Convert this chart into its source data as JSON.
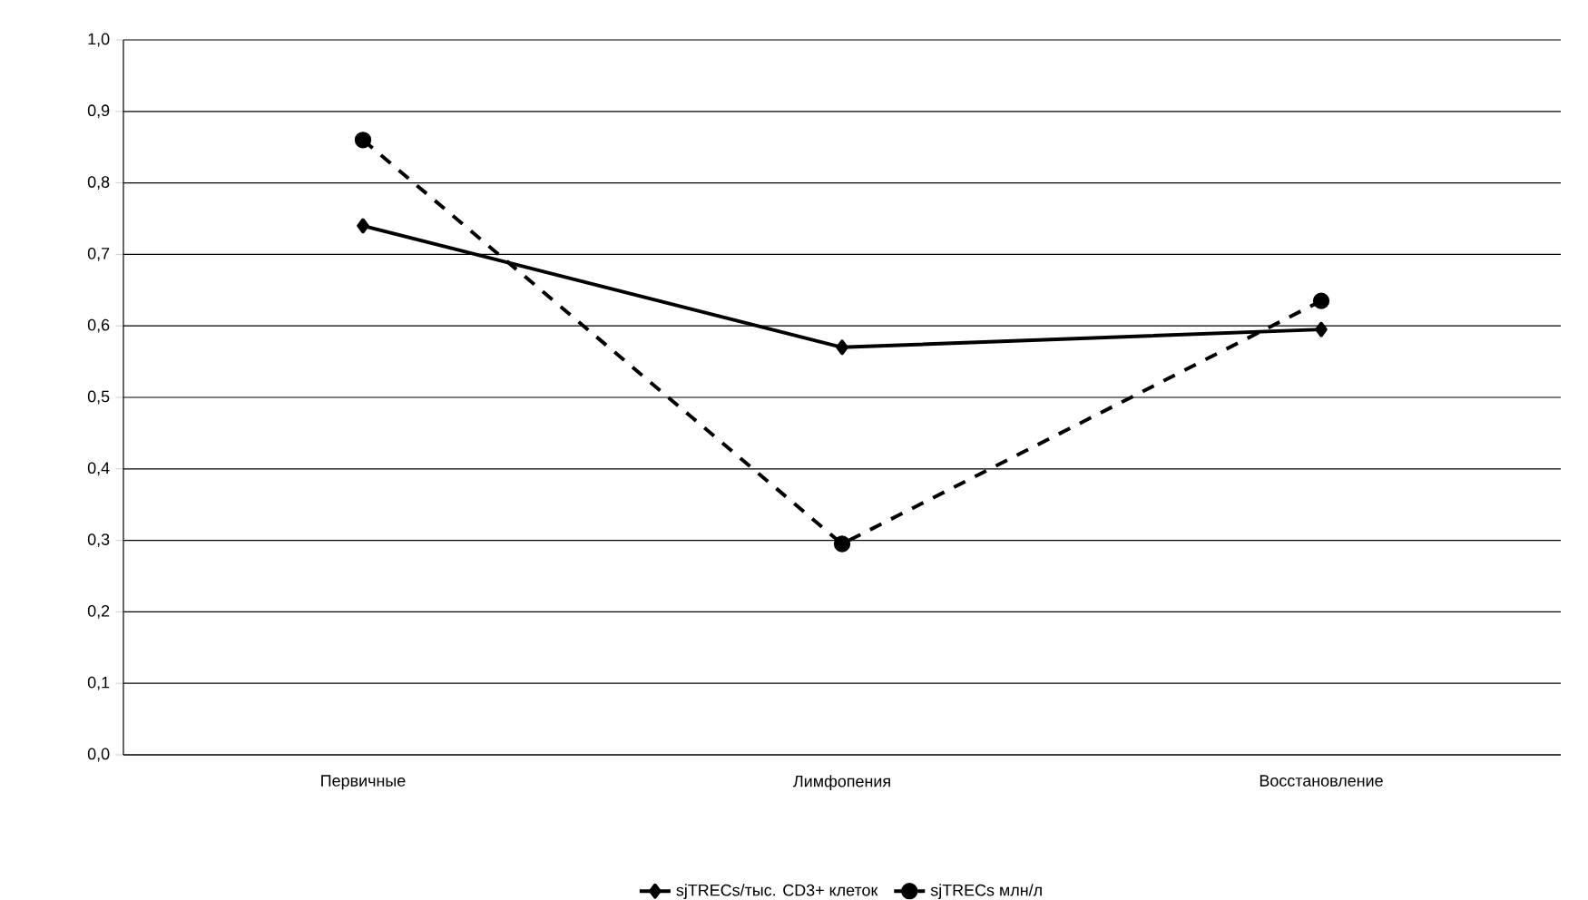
{
  "chart_data": {
    "type": "line",
    "categories": [
      "Первичные",
      "Лимфопения",
      "Восстановление"
    ],
    "series": [
      {
        "name": "sjTRECs/тыс. CD3+ клеток",
        "color": "#000000",
        "values": [
          0.74,
          0.57,
          0.595
        ],
        "marker": "diamond",
        "line_style": "solid"
      },
      {
        "name": "sjTRECs млн/л",
        "color": "#000000",
        "values": [
          0.86,
          0.295,
          0.635
        ],
        "marker": "circle",
        "line_style": "dashed"
      }
    ],
    "ylim": [
      0,
      1
    ],
    "yticks": [
      {
        "value": 0,
        "label": "0,0"
      },
      {
        "value": 0.1,
        "label": "0,1"
      },
      {
        "value": 0.2,
        "label": "0,2"
      },
      {
        "value": 0.3,
        "label": "0,3"
      },
      {
        "value": 0.4,
        "label": "0,4"
      },
      {
        "value": 0.5,
        "label": "0,5"
      },
      {
        "value": 0.6,
        "label": "0,6"
      },
      {
        "value": 0.7,
        "label": "0,7"
      },
      {
        "value": 0.8,
        "label": "0,8"
      },
      {
        "value": 0.9,
        "label": "0,9"
      },
      {
        "value": 1,
        "label": "1,0"
      }
    ],
    "grid": "y",
    "legend": "bottom"
  }
}
